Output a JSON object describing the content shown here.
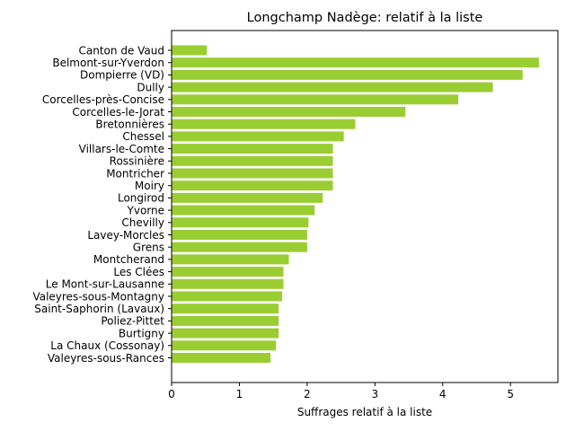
{
  "chart_data": {
    "type": "bar",
    "orientation": "horizontal",
    "title": "Longchamp Nadège: relatif à la liste",
    "xlabel": "Suffrages relatif à la liste",
    "ylabel": "",
    "xlim": [
      0,
      5.7
    ],
    "xticks": [
      0,
      1,
      2,
      3,
      4,
      5
    ],
    "grid": false,
    "bar_color": "#9acd32",
    "categories": [
      "Canton de Vaud",
      "Belmont-sur-Yverdon",
      "Dompierre (VD)",
      "Dully",
      "Corcelles-près-Concise",
      "Corcelles-le-Jorat",
      "Bretonnières",
      "Chessel",
      "Villars-le-Comte",
      "Rossinière",
      "Montricher",
      "Moiry",
      "Longirod",
      "Yvorne",
      "Chevilly",
      "Lavey-Morcles",
      "Grens",
      "Montcherand",
      "Les Clées",
      "Le Mont-sur-Lausanne",
      "Valeyres-sous-Montagny",
      "Saint-Saphorin (Lavaux)",
      "Poliez-Pittet",
      "Burtigny",
      "La Chaux (Cossonay)",
      "Valeyres-sous-Rances"
    ],
    "values": [
      0.52,
      5.42,
      5.18,
      4.74,
      4.23,
      3.45,
      2.71,
      2.54,
      2.38,
      2.38,
      2.38,
      2.38,
      2.23,
      2.11,
      2.02,
      2.0,
      2.0,
      1.73,
      1.65,
      1.65,
      1.63,
      1.58,
      1.58,
      1.58,
      1.54,
      1.46
    ]
  }
}
